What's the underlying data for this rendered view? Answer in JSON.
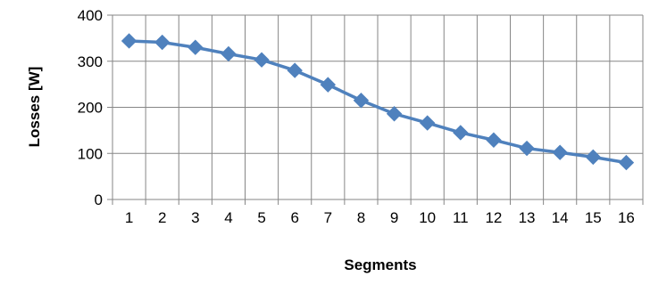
{
  "chart_data": {
    "type": "line",
    "title": "",
    "xlabel": "Segments",
    "ylabel": "Losses [W]",
    "categories": [
      "1",
      "2",
      "3",
      "4",
      "5",
      "6",
      "7",
      "8",
      "9",
      "10",
      "11",
      "12",
      "13",
      "14",
      "15",
      "16"
    ],
    "series": [
      {
        "values": [
          344,
          341,
          330,
          316,
          303,
          280,
          249,
          215,
          186,
          166,
          145,
          129,
          111,
          102,
          92,
          80
        ],
        "color": "#4f81bd"
      }
    ],
    "ylim": [
      0,
      400
    ],
    "yticks": [
      0,
      100,
      200,
      300,
      400
    ],
    "grid": true,
    "marker": "diamond",
    "legend": "none"
  }
}
